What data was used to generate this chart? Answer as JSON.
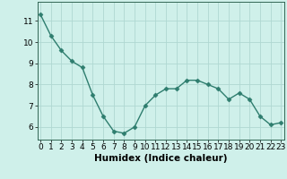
{
  "x": [
    0,
    1,
    2,
    3,
    4,
    5,
    6,
    7,
    8,
    9,
    10,
    11,
    12,
    13,
    14,
    15,
    16,
    17,
    18,
    19,
    20,
    21,
    22,
    23
  ],
  "y": [
    11.3,
    10.3,
    9.6,
    9.1,
    8.8,
    7.5,
    6.5,
    5.8,
    5.7,
    6.0,
    7.0,
    7.5,
    7.8,
    7.8,
    8.2,
    8.2,
    8.0,
    7.8,
    7.3,
    7.6,
    7.3,
    6.5,
    6.1,
    6.2
  ],
  "line_color": "#2e7d6e",
  "marker": "D",
  "marker_size": 2.5,
  "bg_color": "#cff0ea",
  "grid_color": "#afd8d2",
  "xlabel": "Humidex (Indice chaleur)",
  "yticks": [
    6,
    7,
    8,
    9,
    10,
    11
  ],
  "xticks": [
    0,
    1,
    2,
    3,
    4,
    5,
    6,
    7,
    8,
    9,
    10,
    11,
    12,
    13,
    14,
    15,
    16,
    17,
    18,
    19,
    20,
    21,
    22,
    23
  ],
  "xlim": [
    -0.3,
    23.3
  ],
  "ylim": [
    5.4,
    11.9
  ],
  "linewidth": 1.0,
  "xlabel_fontsize": 7.5,
  "tick_fontsize": 6.5
}
